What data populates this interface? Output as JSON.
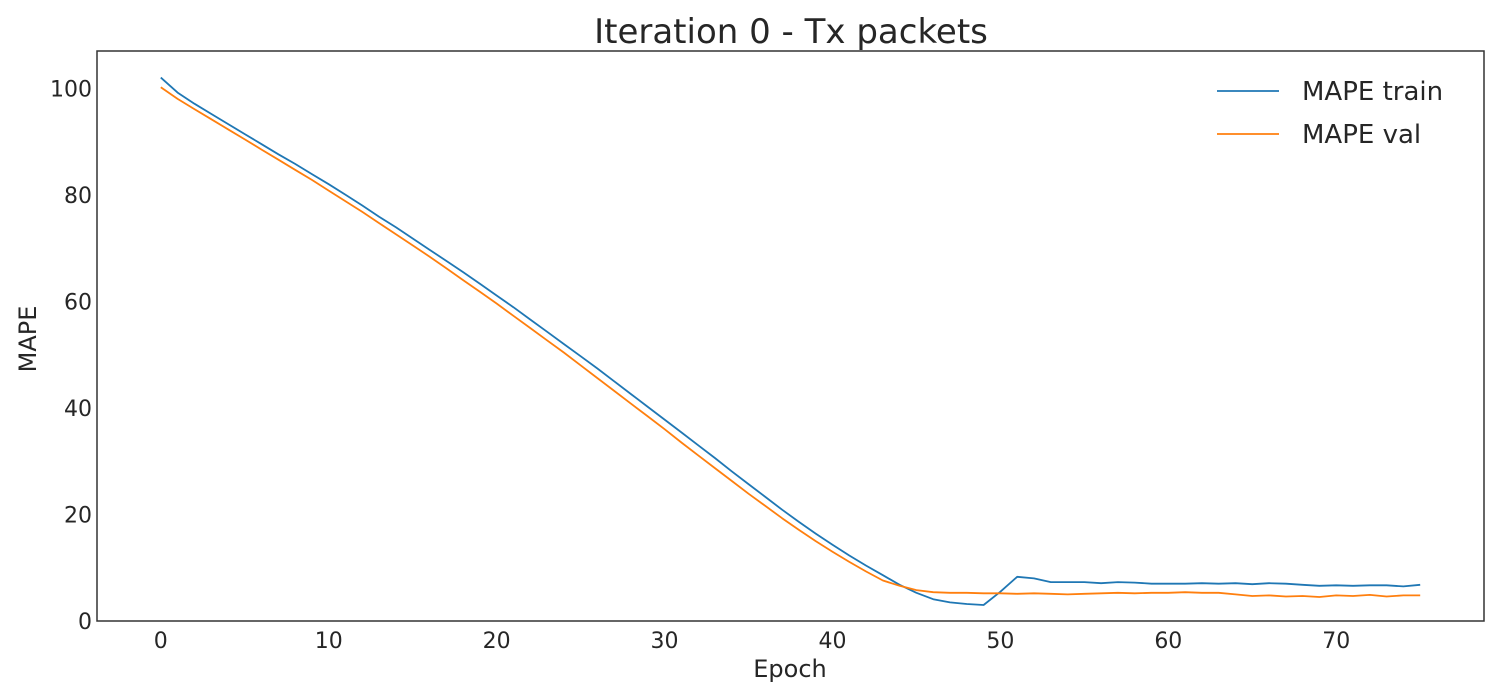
{
  "chart_data": {
    "type": "line",
    "title": "Iteration 0 - Tx packets",
    "xlabel": "Epoch",
    "ylabel": "MAPE",
    "xlim": [
      -3.8,
      78.8
    ],
    "ylim": [
      0,
      107
    ],
    "xticks": [
      0,
      10,
      20,
      30,
      40,
      50,
      60,
      70
    ],
    "yticks": [
      0,
      20,
      40,
      60,
      80,
      100
    ],
    "grid": false,
    "legend_position": "top-right",
    "x": [
      0,
      1,
      2,
      3,
      4,
      5,
      6,
      7,
      8,
      9,
      10,
      11,
      12,
      13,
      14,
      15,
      16,
      17,
      18,
      19,
      20,
      21,
      22,
      23,
      24,
      25,
      26,
      27,
      28,
      29,
      30,
      31,
      32,
      33,
      34,
      35,
      36,
      37,
      38,
      39,
      40,
      41,
      42,
      43,
      44,
      45,
      46,
      47,
      48,
      49,
      50,
      51,
      52,
      53,
      54,
      55,
      56,
      57,
      58,
      59,
      60,
      61,
      62,
      63,
      64,
      65,
      66,
      67,
      68,
      69,
      70,
      71,
      72,
      73,
      74,
      75
    ],
    "series": [
      {
        "name": "MAPE train",
        "color": "#1f77b4",
        "values": [
          102.0,
          99.2,
          97.1,
          95.2,
          93.3,
          91.4,
          89.5,
          87.6,
          85.8,
          83.9,
          82.0,
          80.0,
          78.0,
          75.9,
          73.9,
          71.8,
          69.7,
          67.6,
          65.5,
          63.3,
          61.1,
          58.9,
          56.6,
          54.3,
          52.0,
          49.7,
          47.4,
          45.0,
          42.6,
          40.2,
          37.8,
          35.4,
          33.0,
          30.6,
          28.1,
          25.7,
          23.3,
          20.9,
          18.6,
          16.4,
          14.3,
          12.3,
          10.4,
          8.6,
          6.8,
          5.3,
          4.1,
          3.5,
          3.2,
          3.0,
          5.5,
          8.3,
          8.0,
          7.3,
          7.3,
          7.3,
          7.1,
          7.3,
          7.2,
          7.0,
          7.0,
          7.0,
          7.1,
          7.0,
          7.1,
          6.9,
          7.1,
          7.0,
          6.8,
          6.6,
          6.7,
          6.6,
          6.7,
          6.7,
          6.5,
          6.8
        ]
      },
      {
        "name": "MAPE val",
        "color": "#ff7f0e",
        "values": [
          100.2,
          98.0,
          96.1,
          94.2,
          92.3,
          90.4,
          88.5,
          86.6,
          84.7,
          82.8,
          80.8,
          78.8,
          76.8,
          74.7,
          72.6,
          70.5,
          68.4,
          66.2,
          64.0,
          61.8,
          59.6,
          57.3,
          55.0,
          52.7,
          50.4,
          48.0,
          45.6,
          43.2,
          40.8,
          38.4,
          36.0,
          33.5,
          31.1,
          28.7,
          26.3,
          23.9,
          21.6,
          19.3,
          17.1,
          15.0,
          13.0,
          11.1,
          9.3,
          7.6,
          6.6,
          5.8,
          5.4,
          5.3,
          5.3,
          5.2,
          5.2,
          5.1,
          5.2,
          5.1,
          5.0,
          5.1,
          5.2,
          5.3,
          5.2,
          5.3,
          5.3,
          5.4,
          5.3,
          5.3,
          5.0,
          4.7,
          4.8,
          4.6,
          4.7,
          4.5,
          4.8,
          4.7,
          4.9,
          4.6,
          4.8,
          4.8
        ]
      }
    ]
  }
}
